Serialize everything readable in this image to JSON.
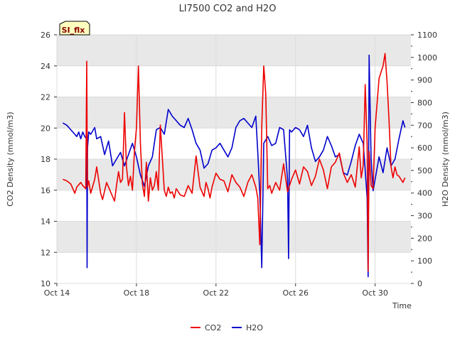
{
  "chart_data": {
    "type": "line",
    "title": "LI7500 CO2 and H2O",
    "badge": "SI_flx",
    "xlabel": "Time",
    "ylabel_left": "CO2 Density (mmol/m3)",
    "ylabel_right": "H2O Density (mmol/m3)",
    "xlim": [
      0,
      17.8
    ],
    "ylim_left": [
      10,
      26
    ],
    "ylim_right": [
      0,
      1100
    ],
    "x_ticks": [
      {
        "x": 0,
        "label": "Oct 14"
      },
      {
        "x": 4,
        "label": "Oct 18"
      },
      {
        "x": 8,
        "label": "Oct 22"
      },
      {
        "x": 12,
        "label": "Oct 26"
      },
      {
        "x": 16,
        "label": "Oct 30"
      }
    ],
    "y_ticks_left": [
      10,
      12,
      14,
      16,
      18,
      20,
      22,
      24,
      26
    ],
    "y_ticks_right": [
      0,
      100,
      200,
      300,
      400,
      500,
      600,
      700,
      800,
      900,
      1000,
      1100
    ],
    "bands_left": [
      [
        12,
        14
      ],
      [
        16,
        18
      ],
      [
        20,
        22
      ],
      [
        24,
        26
      ]
    ],
    "colors": {
      "co2": "#ee0000",
      "h2o": "#0000cc",
      "band": "#e8e8e8",
      "badge_fill": "#ffffc0",
      "badge_text": "#8b0000"
    },
    "series": [
      {
        "name": "CO2",
        "axis": "left",
        "x": [
          0.3,
          0.5,
          0.7,
          0.9,
          1.0,
          1.2,
          1.3,
          1.45,
          1.5,
          1.52,
          1.54,
          1.6,
          1.7,
          1.9,
          2.0,
          2.2,
          2.3,
          2.5,
          2.7,
          2.9,
          3.0,
          3.1,
          3.2,
          3.3,
          3.4,
          3.5,
          3.6,
          3.7,
          3.8,
          3.9,
          4.0,
          4.1,
          4.2,
          4.3,
          4.4,
          4.5,
          4.6,
          4.7,
          4.8,
          4.9,
          5.0,
          5.1,
          5.2,
          5.4,
          5.5,
          5.6,
          5.7,
          5.8,
          5.9,
          6.0,
          6.2,
          6.4,
          6.6,
          6.8,
          7.0,
          7.2,
          7.4,
          7.5,
          7.6,
          7.7,
          7.8,
          8.0,
          8.2,
          8.4,
          8.6,
          8.8,
          9.0,
          9.2,
          9.4,
          9.6,
          9.8,
          10.0,
          10.1,
          10.2,
          10.3,
          10.4,
          10.5,
          10.6,
          10.7,
          10.8,
          11.0,
          11.2,
          11.4,
          11.5,
          11.6,
          11.8,
          12.0,
          12.2,
          12.4,
          12.6,
          12.8,
          13.0,
          13.2,
          13.4,
          13.6,
          13.8,
          14.0,
          14.2,
          14.4,
          14.6,
          14.8,
          15.0,
          15.2,
          15.3,
          15.4,
          15.5,
          15.6,
          15.65,
          15.7,
          15.8,
          15.9,
          16.0,
          16.2,
          16.4,
          16.5,
          16.6,
          16.7,
          16.8,
          16.9,
          17.0,
          17.1,
          17.2,
          17.4,
          17.5
        ],
        "values": [
          16.7,
          16.6,
          16.4,
          15.8,
          16.2,
          16.5,
          16.3,
          16.1,
          24.3,
          20.0,
          16.2,
          16.6,
          15.8,
          16.7,
          17.5,
          15.8,
          15.4,
          16.5,
          15.9,
          15.3,
          16.3,
          17.2,
          16.5,
          16.7,
          21.0,
          17.5,
          16.3,
          16.9,
          16.0,
          18.5,
          20.0,
          24.0,
          19.0,
          16.4,
          15.6,
          17.8,
          15.3,
          16.8,
          16.0,
          16.3,
          17.2,
          16.0,
          20.2,
          16.0,
          15.6,
          16.2,
          15.8,
          15.9,
          15.5,
          16.1,
          15.7,
          15.6,
          16.3,
          15.8,
          18.2,
          16.2,
          15.6,
          16.5,
          16.1,
          15.5,
          16.2,
          17.1,
          16.7,
          16.6,
          15.9,
          17.0,
          16.5,
          16.2,
          15.6,
          16.5,
          17.0,
          16.2,
          15.5,
          12.5,
          20.1,
          24.0,
          22.2,
          16.1,
          16.3,
          15.8,
          16.5,
          16.0,
          17.7,
          16.8,
          15.9,
          16.7,
          17.3,
          16.4,
          17.5,
          17.2,
          16.3,
          16.9,
          18.0,
          17.3,
          16.1,
          17.5,
          17.8,
          18.4,
          17.1,
          16.5,
          17.0,
          16.2,
          18.8,
          16.8,
          17.6,
          22.8,
          19.0,
          10.8,
          18.5,
          16.3,
          16.1,
          20.0,
          23.2,
          24.0,
          24.8,
          23.0,
          20.5,
          17.5,
          16.8,
          17.5,
          17.0,
          16.9,
          16.5,
          16.8
        ]
      },
      {
        "name": "H2O",
        "axis": "right",
        "x": [
          0.3,
          0.5,
          0.7,
          0.9,
          1.0,
          1.1,
          1.2,
          1.3,
          1.4,
          1.5,
          1.52,
          1.54,
          1.6,
          1.7,
          1.9,
          2.0,
          2.2,
          2.4,
          2.6,
          2.8,
          3.0,
          3.2,
          3.4,
          3.6,
          3.8,
          4.0,
          4.2,
          4.4,
          4.6,
          4.8,
          5.0,
          5.2,
          5.4,
          5.6,
          5.8,
          6.0,
          6.2,
          6.4,
          6.6,
          6.8,
          7.0,
          7.2,
          7.4,
          7.6,
          7.8,
          8.0,
          8.2,
          8.4,
          8.6,
          8.8,
          9.0,
          9.2,
          9.4,
          9.6,
          9.8,
          10.0,
          10.1,
          10.2,
          10.3,
          10.4,
          10.6,
          10.8,
          11.0,
          11.2,
          11.4,
          11.6,
          11.65,
          11.7,
          11.8,
          12.0,
          12.2,
          12.4,
          12.6,
          12.8,
          13.0,
          13.2,
          13.4,
          13.6,
          13.8,
          14.0,
          14.2,
          14.4,
          14.6,
          14.8,
          15.0,
          15.2,
          15.4,
          15.5,
          15.6,
          15.65,
          15.7,
          15.8,
          15.9,
          16.0,
          16.2,
          16.4,
          16.6,
          16.8,
          17.0,
          17.2,
          17.4,
          17.5
        ],
        "values": [
          710,
          700,
          680,
          660,
          650,
          670,
          640,
          670,
          650,
          640,
          70,
          600,
          670,
          660,
          690,
          640,
          650,
          570,
          630,
          520,
          550,
          580,
          520,
          570,
          620,
          560,
          480,
          430,
          520,
          560,
          680,
          690,
          660,
          770,
          740,
          720,
          700,
          690,
          730,
          680,
          620,
          590,
          510,
          530,
          590,
          600,
          620,
          590,
          560,
          600,
          690,
          720,
          730,
          710,
          690,
          740,
          580,
          400,
          70,
          620,
          650,
          610,
          620,
          690,
          680,
          460,
          110,
          680,
          670,
          690,
          680,
          650,
          700,
          600,
          540,
          560,
          590,
          650,
          610,
          560,
          570,
          490,
          480,
          540,
          610,
          660,
          620,
          500,
          380,
          30,
          1010,
          550,
          410,
          460,
          560,
          490,
          600,
          520,
          550,
          640,
          720,
          690
        ]
      }
    ]
  }
}
